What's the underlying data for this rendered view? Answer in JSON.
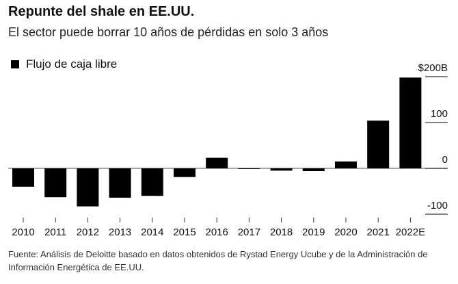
{
  "title": "Repunte del shale en EE.UU.",
  "subtitle": "El sector puede borrar 10 años de pérdidas en solo 3 años",
  "source": "Fuente: Análisis de Deloitte basado en datos obtenidos de Rystad Energy Ucube y de la Administración de Información Energética de EE.UU.",
  "chart_data": {
    "type": "bar",
    "categories": [
      "2010",
      "2011",
      "2012",
      "2013",
      "2014",
      "2015",
      "2016",
      "2017",
      "2018",
      "2019",
      "2020",
      "2021",
      "2022E"
    ],
    "series": [
      {
        "name": "Flujo de caja libre",
        "values": [
          -40,
          -63,
          -83,
          -64,
          -60,
          -19,
          23,
          0,
          -5,
          -6,
          15,
          104,
          198
        ],
        "color": "#000000"
      }
    ],
    "ylim": [
      -110,
      210
    ],
    "yticks": [
      200,
      100,
      0,
      -100
    ],
    "ytick_labels": [
      "$200B",
      "100",
      "0",
      "-100"
    ],
    "axis_position": "right",
    "legend": "top-left",
    "grid": false
  }
}
